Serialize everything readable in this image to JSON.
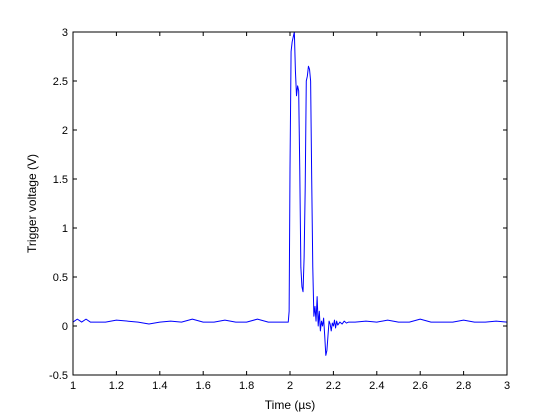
{
  "chart_data": {
    "type": "line",
    "xlabel": "Time (µs)",
    "ylabel": "Trigger voltage (V)",
    "xlim": [
      1,
      3
    ],
    "ylim": [
      -0.5,
      3
    ],
    "xticks": [
      1,
      1.2,
      1.4,
      1.6,
      1.8,
      2,
      2.2,
      2.4,
      2.6,
      2.8,
      3
    ],
    "xtick_labels": [
      "1",
      "1.2",
      "1.4",
      "1.6",
      "1.8",
      "2",
      "2.2",
      "2.4",
      "2.6",
      "2.8",
      "3"
    ],
    "yticks": [
      -0.5,
      0,
      0.5,
      1,
      1.5,
      2,
      2.5,
      3
    ],
    "ytick_labels": [
      "-0.5",
      "0",
      "0.5",
      "1",
      "1.5",
      "2",
      "2.5",
      "3"
    ],
    "grid": false,
    "series": [
      {
        "color": "#0000ff",
        "x": [
          1.0,
          1.02,
          1.04,
          1.06,
          1.08,
          1.1,
          1.15,
          1.2,
          1.3,
          1.35,
          1.4,
          1.45,
          1.5,
          1.55,
          1.6,
          1.65,
          1.7,
          1.75,
          1.8,
          1.85,
          1.9,
          1.95,
          1.98,
          1.992,
          1.996,
          2.0,
          2.005,
          2.01,
          2.015,
          2.02,
          2.025,
          2.03,
          2.035,
          2.04,
          2.045,
          2.05,
          2.055,
          2.06,
          2.065,
          2.07,
          2.075,
          2.08,
          2.085,
          2.09,
          2.095,
          2.1,
          2.105,
          2.11,
          2.115,
          2.12,
          2.125,
          2.13,
          2.135,
          2.14,
          2.145,
          2.15,
          2.155,
          2.16,
          2.165,
          2.17,
          2.175,
          2.18,
          2.185,
          2.19,
          2.195,
          2.2,
          2.205,
          2.21,
          2.215,
          2.22,
          2.23,
          2.24,
          2.25,
          2.26,
          2.27,
          2.28,
          2.3,
          2.35,
          2.4,
          2.45,
          2.5,
          2.55,
          2.6,
          2.65,
          2.7,
          2.75,
          2.8,
          2.85,
          2.9,
          2.95,
          3.0
        ],
        "y": [
          0.04,
          0.07,
          0.04,
          0.07,
          0.04,
          0.04,
          0.04,
          0.06,
          0.04,
          0.02,
          0.04,
          0.05,
          0.04,
          0.07,
          0.04,
          0.04,
          0.06,
          0.04,
          0.04,
          0.07,
          0.04,
          0.04,
          0.04,
          0.04,
          0.15,
          1.6,
          2.8,
          2.9,
          2.95,
          3.0,
          2.6,
          2.35,
          2.45,
          2.4,
          1.6,
          0.6,
          0.4,
          0.35,
          0.7,
          1.4,
          2.5,
          2.55,
          2.65,
          2.62,
          2.5,
          1.5,
          0.6,
          0.1,
          0.2,
          0.05,
          0.3,
          0.0,
          0.15,
          -0.05,
          0.05,
          0.0,
          0.08,
          -0.1,
          -0.3,
          -0.25,
          -0.1,
          0.05,
          0.02,
          -0.05,
          0.03,
          0.0,
          0.06,
          -0.02,
          0.05,
          0.01,
          0.04,
          0.02,
          0.05,
          0.03,
          0.04,
          0.04,
          0.04,
          0.05,
          0.04,
          0.06,
          0.04,
          0.04,
          0.07,
          0.04,
          0.04,
          0.04,
          0.06,
          0.04,
          0.04,
          0.05,
          0.04
        ]
      }
    ]
  }
}
